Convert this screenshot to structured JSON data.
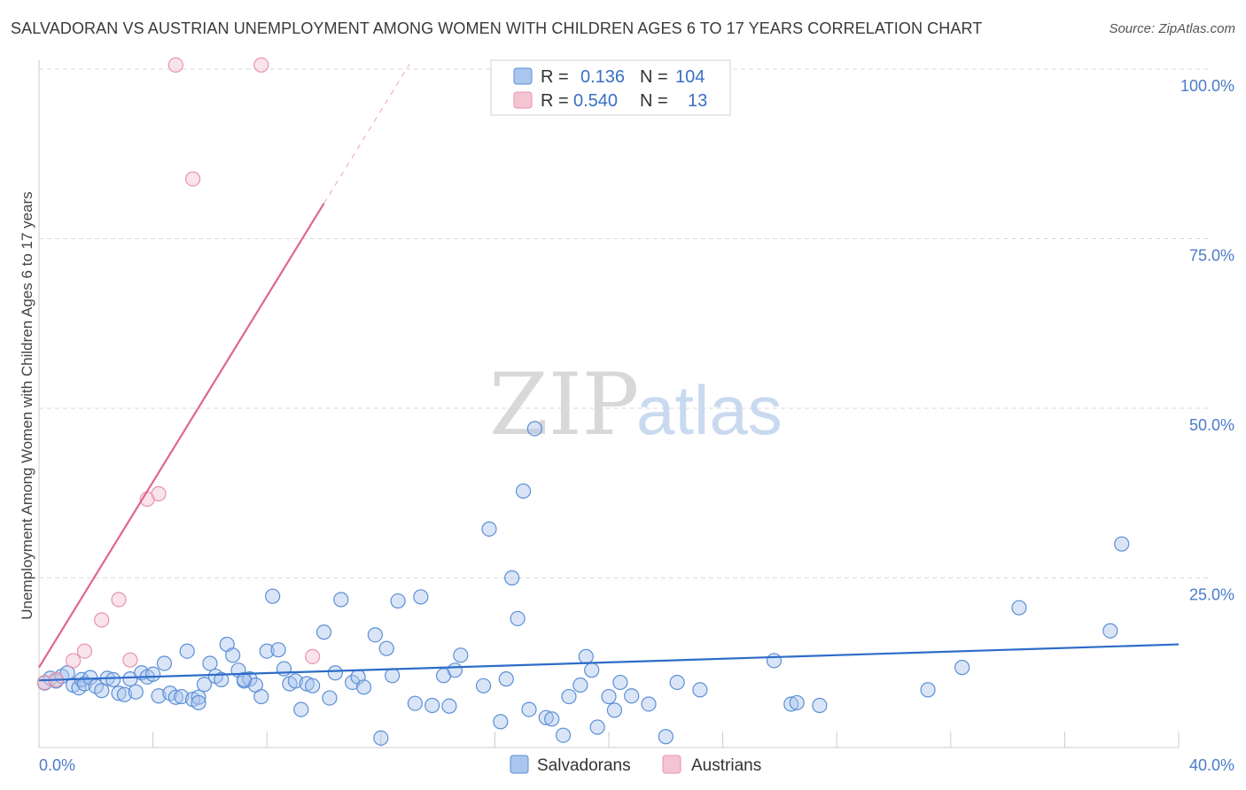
{
  "title": "SALVADORAN VS AUSTRIAN UNEMPLOYMENT AMONG WOMEN WITH CHILDREN AGES 6 TO 17 YEARS CORRELATION CHART",
  "source": "Source: ZipAtlas.com",
  "watermark": {
    "zip": "ZIP",
    "atlas": "atlas"
  },
  "colors": {
    "blue": "#5b8fd6",
    "blue_fill": "#aac6ee",
    "blue_line": "#2d6cc8",
    "pink": "#e893ae",
    "pink_fill": "#f5c4d3",
    "pink_line": "#e0668f",
    "grid": "#d9d9d9",
    "tick_text": "#4a7cc9"
  },
  "legend": {
    "r_label": "R =",
    "n_label": "N =",
    "series": [
      {
        "r": "0.136",
        "n": "104"
      },
      {
        "r": "0.540",
        "n": "13"
      }
    ]
  },
  "chart_data": {
    "type": "scatter",
    "title": "SALVADORAN VS AUSTRIAN UNEMPLOYMENT AMONG WOMEN WITH CHILDREN AGES 6 TO 17 YEARS CORRELATION CHART",
    "xlabel": "",
    "ylabel": "Unemployment Among Women with Children Ages 6 to 17 years",
    "xlim": [
      0,
      40
    ],
    "ylim": [
      0,
      100
    ],
    "x_tick_labels": [
      "0.0%",
      "40.0%"
    ],
    "y_ticks": [
      25,
      50,
      75,
      100
    ],
    "y_tick_labels": [
      "25.0%",
      "50.0%",
      "75.0%",
      "100.0%"
    ],
    "grid": true,
    "series": [
      {
        "name": "Salvadorans",
        "r": 0.136,
        "n": 104,
        "trend": {
          "x": [
            0,
            40
          ],
          "y": [
            9.9,
            15.2
          ]
        },
        "points": [
          [
            0.2,
            9.5
          ],
          [
            0.4,
            10.2
          ],
          [
            0.6,
            9.8
          ],
          [
            0.8,
            10.5
          ],
          [
            1.0,
            11.0
          ],
          [
            1.2,
            9.2
          ],
          [
            1.4,
            8.8
          ],
          [
            1.5,
            10.0
          ],
          [
            1.6,
            9.4
          ],
          [
            1.8,
            10.3
          ],
          [
            2.0,
            9.0
          ],
          [
            2.2,
            8.4
          ],
          [
            2.4,
            10.2
          ],
          [
            2.6,
            10.0
          ],
          [
            2.8,
            8.0
          ],
          [
            3.0,
            7.8
          ],
          [
            3.2,
            10.1
          ],
          [
            3.4,
            8.2
          ],
          [
            3.6,
            11.0
          ],
          [
            3.8,
            10.4
          ],
          [
            4.0,
            10.8
          ],
          [
            4.2,
            7.6
          ],
          [
            4.4,
            12.4
          ],
          [
            4.6,
            8.0
          ],
          [
            4.8,
            7.4
          ],
          [
            5.0,
            7.5
          ],
          [
            5.2,
            14.2
          ],
          [
            5.4,
            7.1
          ],
          [
            5.6,
            7.4
          ],
          [
            5.8,
            9.3
          ],
          [
            6.0,
            12.4
          ],
          [
            6.2,
            10.5
          ],
          [
            6.4,
            10.0
          ],
          [
            6.6,
            15.2
          ],
          [
            6.8,
            13.6
          ],
          [
            7.0,
            11.4
          ],
          [
            7.2,
            9.8
          ],
          [
            7.4,
            10.1
          ],
          [
            7.6,
            9.2
          ],
          [
            7.8,
            7.5
          ],
          [
            8.0,
            14.2
          ],
          [
            8.2,
            22.3
          ],
          [
            8.4,
            14.4
          ],
          [
            8.6,
            11.6
          ],
          [
            8.8,
            9.4
          ],
          [
            9.0,
            9.8
          ],
          [
            9.2,
            5.6
          ],
          [
            9.4,
            9.4
          ],
          [
            9.6,
            9.1
          ],
          [
            10.0,
            17.0
          ],
          [
            10.2,
            7.3
          ],
          [
            10.4,
            11.0
          ],
          [
            10.6,
            21.8
          ],
          [
            11.0,
            9.6
          ],
          [
            11.2,
            10.4
          ],
          [
            11.4,
            8.9
          ],
          [
            11.8,
            16.6
          ],
          [
            12.2,
            14.6
          ],
          [
            12.4,
            10.6
          ],
          [
            12.6,
            21.6
          ],
          [
            12.0,
            1.4
          ],
          [
            13.2,
            6.5
          ],
          [
            13.4,
            22.2
          ],
          [
            13.8,
            6.2
          ],
          [
            14.2,
            10.6
          ],
          [
            14.4,
            6.1
          ],
          [
            14.6,
            11.4
          ],
          [
            14.8,
            13.6
          ],
          [
            15.6,
            9.1
          ],
          [
            15.8,
            32.2
          ],
          [
            16.2,
            3.8
          ],
          [
            16.4,
            10.1
          ],
          [
            16.6,
            25.0
          ],
          [
            16.8,
            19.0
          ],
          [
            17.0,
            37.8
          ],
          [
            17.2,
            5.6
          ],
          [
            17.4,
            47.0
          ],
          [
            17.8,
            4.4
          ],
          [
            18.0,
            4.2
          ],
          [
            18.4,
            1.8
          ],
          [
            18.6,
            7.5
          ],
          [
            19.0,
            9.2
          ],
          [
            19.2,
            13.4
          ],
          [
            19.4,
            11.4
          ],
          [
            19.6,
            3.0
          ],
          [
            20.0,
            7.5
          ],
          [
            20.2,
            5.5
          ],
          [
            20.4,
            9.6
          ],
          [
            20.8,
            7.6
          ],
          [
            21.4,
            6.4
          ],
          [
            22.0,
            1.6
          ],
          [
            22.4,
            9.6
          ],
          [
            23.2,
            8.5
          ],
          [
            25.8,
            12.8
          ],
          [
            26.4,
            6.4
          ],
          [
            26.6,
            6.6
          ],
          [
            27.4,
            6.2
          ],
          [
            31.2,
            8.5
          ],
          [
            32.4,
            11.8
          ],
          [
            34.4,
            20.6
          ],
          [
            37.6,
            17.2
          ],
          [
            38.0,
            30.0
          ],
          [
            5.6,
            6.6
          ],
          [
            7.2,
            10.0
          ]
        ]
      },
      {
        "name": "Austrians",
        "r": 0.54,
        "n": 13,
        "trend": {
          "x": [
            0,
            10.0
          ],
          "y": [
            11.8,
            80.2
          ]
        },
        "trend_dashed": {
          "x": [
            10.0,
            13.0
          ],
          "y": [
            80.2,
            100.7
          ]
        },
        "points": [
          [
            0.2,
            9.6
          ],
          [
            0.6,
            10.0
          ],
          [
            1.2,
            12.8
          ],
          [
            1.6,
            14.2
          ],
          [
            2.2,
            18.8
          ],
          [
            2.8,
            21.8
          ],
          [
            3.2,
            12.9
          ],
          [
            3.8,
            36.6
          ],
          [
            4.2,
            37.4
          ],
          [
            4.8,
            100.6
          ],
          [
            5.4,
            83.8
          ],
          [
            7.8,
            100.6
          ],
          [
            9.6,
            13.4
          ]
        ]
      }
    ]
  }
}
